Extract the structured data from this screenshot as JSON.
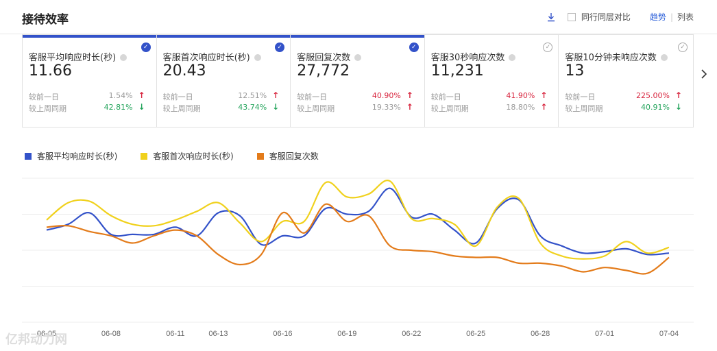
{
  "header": {
    "title": "接待效率",
    "compare_label": "同行同层对比",
    "view_trend": "趋势",
    "view_list": "列表",
    "accent": "#3352c9"
  },
  "cards": [
    {
      "label": "客服平均响应时长(秒)",
      "value": "11.66",
      "selected": true,
      "cmp1_label": "较前一日",
      "cmp1_value": "1.54%",
      "cmp1_dir": "up",
      "cmp1_color": "neutral",
      "cmp2_label": "较上周同期",
      "cmp2_value": "42.81%",
      "cmp2_dir": "down",
      "cmp2_color": "down"
    },
    {
      "label": "客服首次响应时长(秒)",
      "value": "20.43",
      "selected": true,
      "cmp1_label": "较前一日",
      "cmp1_value": "12.51%",
      "cmp1_dir": "up",
      "cmp1_color": "neutral",
      "cmp2_label": "较上周同期",
      "cmp2_value": "43.74%",
      "cmp2_dir": "down",
      "cmp2_color": "down"
    },
    {
      "label": "客服回复次数",
      "value": "27,772",
      "selected": true,
      "cmp1_label": "较前一日",
      "cmp1_value": "40.90%",
      "cmp1_dir": "up",
      "cmp1_color": "up",
      "cmp2_label": "较上周同期",
      "cmp2_value": "19.33%",
      "cmp2_dir": "up",
      "cmp2_color": "neutral"
    },
    {
      "label": "客服30秒响应次数",
      "value": "11,231",
      "selected": false,
      "cmp1_label": "较前一日",
      "cmp1_value": "41.90%",
      "cmp1_dir": "up",
      "cmp1_color": "up",
      "cmp2_label": "较上周同期",
      "cmp2_value": "18.80%",
      "cmp2_dir": "up",
      "cmp2_color": "neutral"
    },
    {
      "label": "客服10分钟未响应次数",
      "value": "13",
      "selected": false,
      "cmp1_label": "较前一日",
      "cmp1_value": "225.00%",
      "cmp1_dir": "up",
      "cmp1_color": "up",
      "cmp2_label": "较上周同期",
      "cmp2_value": "40.91%",
      "cmp2_dir": "down",
      "cmp2_color": "down"
    }
  ],
  "watermark": "亿邦动力网",
  "chart_data": {
    "type": "line",
    "x": [
      "06-05",
      "06-06",
      "06-07",
      "06-08",
      "06-09",
      "06-10",
      "06-11",
      "06-12",
      "06-13",
      "06-14",
      "06-15",
      "06-16",
      "06-17",
      "06-18",
      "06-19",
      "06-20",
      "06-21",
      "06-22",
      "06-23",
      "06-24",
      "06-25",
      "06-26",
      "06-27",
      "06-28",
      "06-29",
      "06-30",
      "07-01",
      "07-02",
      "07-03",
      "07-04"
    ],
    "x_tick_labels": [
      "06-05",
      "06-08",
      "06-11",
      "06-13",
      "06-16",
      "06-19",
      "06-22",
      "06-25",
      "06-28",
      "07-01",
      "07-04"
    ],
    "x_tick_indices": [
      0,
      3,
      6,
      8,
      11,
      14,
      17,
      20,
      23,
      26,
      29
    ],
    "ylim": [
      0,
      100
    ],
    "grid": true,
    "legend": "top-left",
    "series": [
      {
        "name": "客服平均响应时长(秒)",
        "color": "#3352c9",
        "values": [
          64,
          68,
          76,
          61,
          61,
          61,
          66,
          60,
          76,
          74,
          54,
          60,
          60,
          79,
          75,
          77,
          93,
          73,
          75,
          64,
          55,
          79,
          85,
          60,
          53,
          48,
          49,
          51,
          47,
          48
        ]
      },
      {
        "name": "客服首次响应时长(秒)",
        "color": "#f0d11c",
        "values": [
          71,
          83,
          84,
          74,
          68,
          67,
          71,
          77,
          83,
          69,
          56,
          70,
          70,
          97,
          87,
          89,
          98,
          72,
          72,
          68,
          53,
          80,
          86,
          55,
          46,
          44,
          46,
          56,
          48,
          52
        ]
      },
      {
        "name": "客服回复次数",
        "color": "#e37b1a",
        "values": [
          66,
          67,
          63,
          60,
          55,
          60,
          64,
          60,
          47,
          40,
          47,
          76,
          62,
          82,
          70,
          74,
          53,
          50,
          49,
          46,
          45,
          45,
          41,
          41,
          39,
          35,
          38,
          36,
          34,
          45
        ]
      }
    ]
  }
}
